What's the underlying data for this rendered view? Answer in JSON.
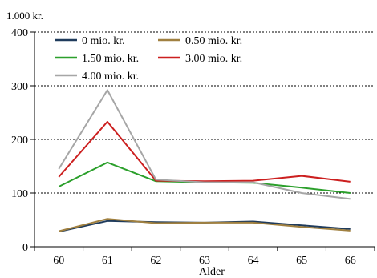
{
  "chart_data": {
    "type": "line",
    "title": "",
    "y_unit_label": "1.000 kr.",
    "xlabel": "Alder",
    "ylabel": "",
    "x": [
      "60",
      "61",
      "62",
      "63",
      "64",
      "65",
      "66"
    ],
    "ylim": [
      0,
      400
    ],
    "yticks": [
      "0",
      "100",
      "200",
      "300",
      "400"
    ],
    "grid": true,
    "legend_position": "top-left",
    "series": [
      {
        "name": "0 mio. kr.",
        "color": "#1f3b5c",
        "values": [
          28,
          48,
          46,
          45,
          47,
          40,
          33
        ]
      },
      {
        "name": "0.50 mio. kr.",
        "color": "#a08040",
        "values": [
          29,
          52,
          44,
          45,
          45,
          37,
          30
        ]
      },
      {
        "name": "1.50 mio. kr.",
        "color": "#2ca02c",
        "values": [
          112,
          157,
          122,
          120,
          119,
          110,
          100
        ]
      },
      {
        "name": "3.00 mio. kr.",
        "color": "#cc1f1f",
        "values": [
          130,
          233,
          123,
          122,
          123,
          132,
          121
        ]
      },
      {
        "name": "4.00 mio. kr.",
        "color": "#a6a6a6",
        "values": [
          145,
          292,
          125,
          120,
          120,
          100,
          89
        ]
      }
    ]
  }
}
